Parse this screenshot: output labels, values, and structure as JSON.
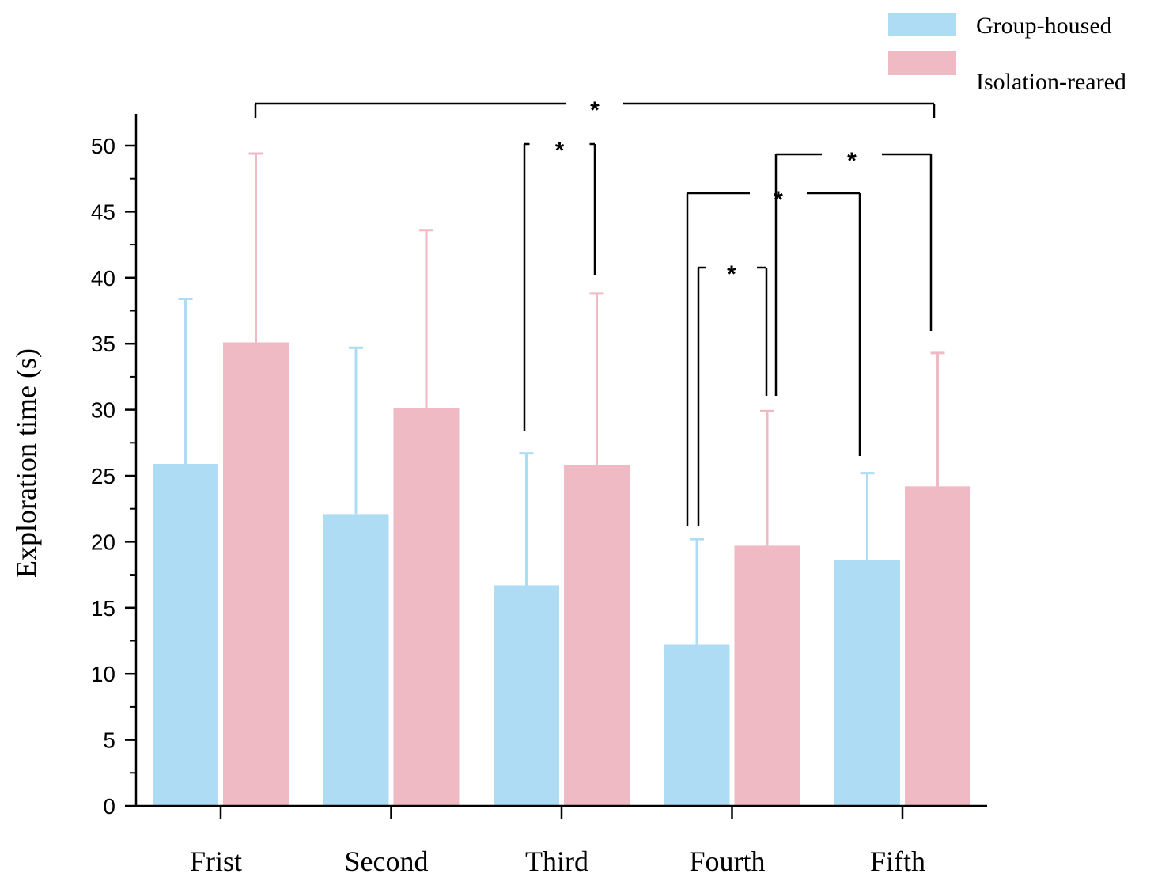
{
  "chart_data": {
    "type": "bar",
    "title": "",
    "xlabel": "",
    "ylabel": "Exploration time (s)",
    "ylim": [
      0,
      50
    ],
    "yticks": [
      0,
      5,
      10,
      15,
      20,
      25,
      30,
      35,
      40,
      45,
      50
    ],
    "categories": [
      "Frist",
      "Second",
      "Third",
      "Fourth",
      "Fifth"
    ],
    "series": [
      {
        "name": "Group-housed",
        "color": "#aedcf4",
        "error_color": "#aedcf4",
        "values": [
          25.9,
          22.1,
          16.7,
          12.2,
          18.6
        ],
        "error_upper": [
          38.4,
          34.7,
          26.7,
          20.2,
          25.2
        ]
      },
      {
        "name": "Isolation-reared",
        "color": "#f0bac4",
        "error_color": "#f0bac4",
        "values": [
          35.1,
          30.1,
          25.8,
          19.7,
          24.2
        ],
        "error_upper": [
          49.4,
          43.6,
          38.8,
          29.9,
          34.3
        ]
      }
    ],
    "legend": {
      "position": "top-right"
    },
    "significance": [
      {
        "label": "*",
        "from": {
          "category": 0,
          "series": 1
        },
        "to": {
          "category": 4,
          "series": 1
        }
      },
      {
        "label": "*",
        "from": {
          "category": 2,
          "series": 0
        },
        "to": {
          "category": 2,
          "series": 1
        }
      },
      {
        "label": "*",
        "from": {
          "category": 3,
          "series": 1
        },
        "to": {
          "category": 4,
          "series": 1
        }
      },
      {
        "label": "*",
        "from": {
          "category": 3,
          "series": 0
        },
        "to": {
          "category": 4,
          "series": 0
        }
      },
      {
        "label": "*",
        "from": {
          "category": 3,
          "series": 0
        },
        "to": {
          "category": 3,
          "series": 1
        }
      }
    ]
  }
}
